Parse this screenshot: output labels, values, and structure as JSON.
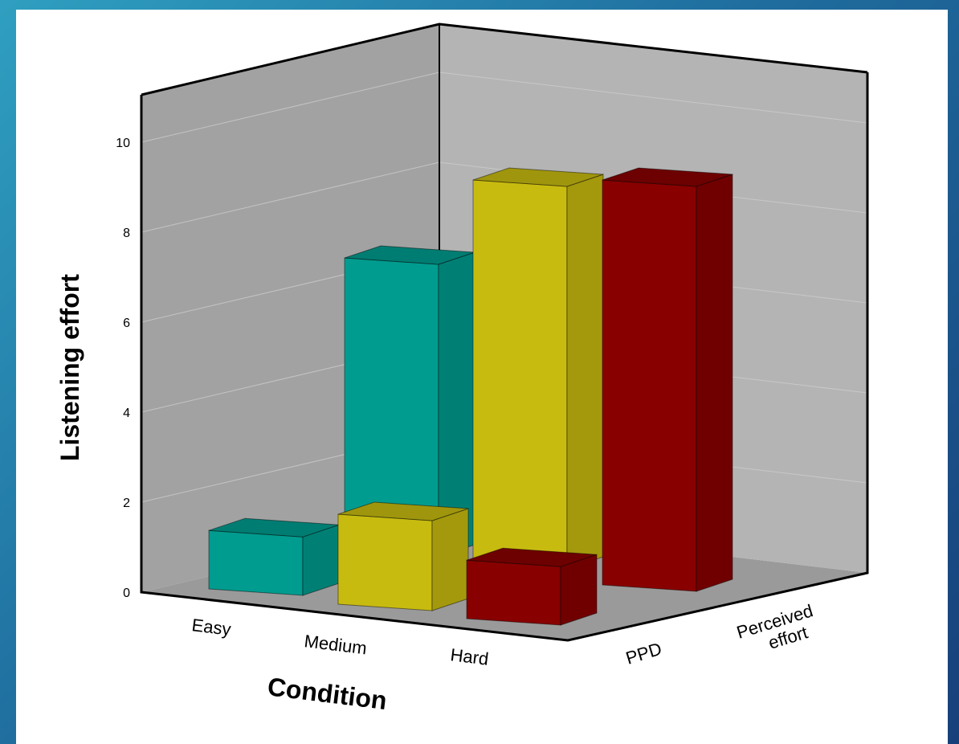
{
  "chart_data": {
    "type": "bar",
    "style": "3d-clustered",
    "xlabel": "Condition",
    "ylabel": "Listening effort",
    "categories": [
      "Easy",
      "Medium",
      "Hard"
    ],
    "series": [
      {
        "name": "PPD",
        "values": [
          1.3,
          6.5,
          8.5
        ]
      },
      {
        "name": "Perceived effort",
        "values": [
          null,
          2.0,
          1.3
        ]
      },
      {
        "name": "",
        "values": [
          null,
          null,
          9.0
        ]
      }
    ],
    "depth_labels": [
      "PPD",
      "Perceived effort"
    ],
    "y_ticks": [
      "0",
      "2",
      "4",
      "6",
      "8",
      "10"
    ],
    "ylim": [
      0,
      11
    ],
    "grid": true,
    "colors": {
      "teal": "#009c8f",
      "yellow": "#c8bb10",
      "red": "#880000",
      "back_wall": "#b4b4b4",
      "side_wall": "#a2a2a2",
      "floor": "#9a9a9a"
    }
  }
}
